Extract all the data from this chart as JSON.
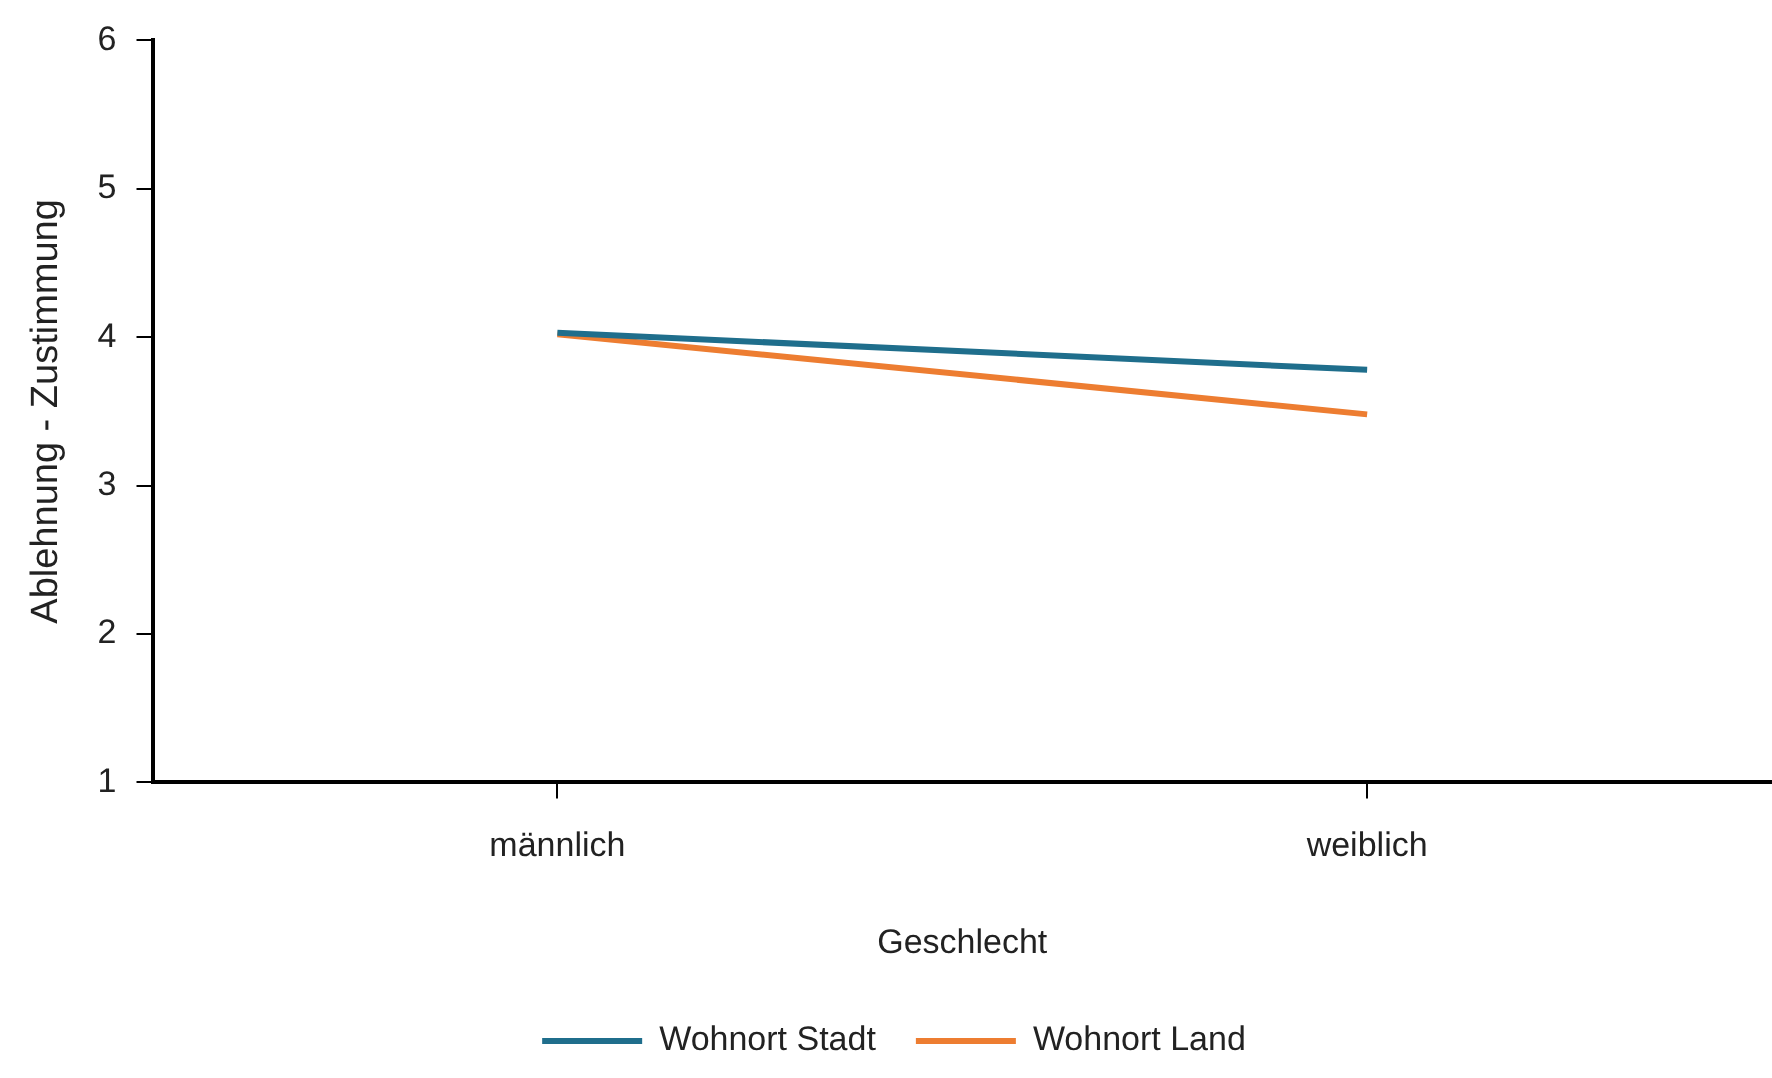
{
  "chart_data": {
    "type": "line",
    "xlabel": "Geschlecht",
    "ylabel": "Ablehnung - Zustimmung",
    "categories": [
      "männlich",
      "weiblich"
    ],
    "series": [
      {
        "name": "Wohnort Stadt",
        "color": "#1f6e8c",
        "values": [
          4.03,
          3.78
        ]
      },
      {
        "name": "Wohnort Land",
        "color": "#ed7d31",
        "values": [
          4.02,
          3.48
        ]
      }
    ],
    "ylim": [
      1,
      6
    ],
    "yticks": [
      1,
      2,
      3,
      4,
      5,
      6
    ],
    "grid": false,
    "legend": "bottom",
    "marker": "none"
  }
}
